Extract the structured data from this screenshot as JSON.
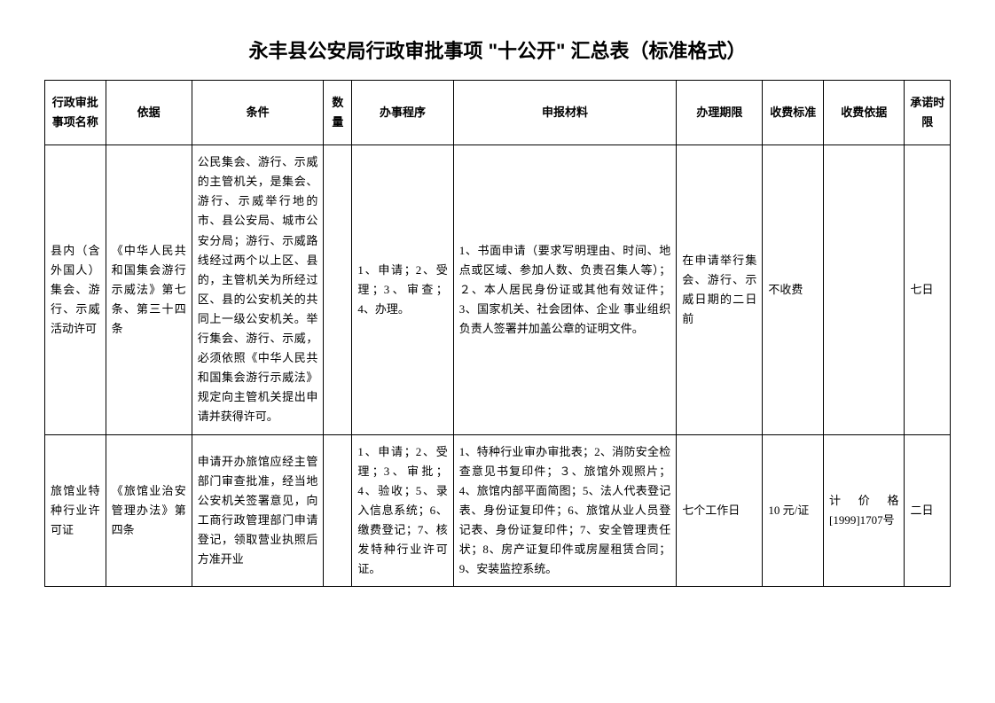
{
  "title": "永丰县公安局行政审批事项 \"十公开\" 汇总表（标准格式）",
  "headers": {
    "name": "行政审批事项名称",
    "basis": "依据",
    "condition": "条件",
    "qty": "数量",
    "procedure": "办事程序",
    "materials": "申报材料",
    "deadline": "办理期限",
    "fee": "收费标准",
    "feebasis": "收费依据",
    "promise": "承诺时限"
  },
  "rows": [
    {
      "name": "县内（含外国人）集会、游行、示威活动许可",
      "basis": "《中华人民共和国集会游行示威法》第七条、第三十四条",
      "condition": "公民集会、游行、示威的主管机关，是集会、游行、示威举行地的市、县公安局、城市公安分局；游行、示威路线经过两个以上区、县的，主管机关为所经过区、县的公安机关的共同上一级公安机关。举行集会、游行、示威，必须依照《中华人民共和国集会游行示威法》规定向主管机关提出申请并获得许可。",
      "qty": "",
      "procedure": "1、申请；2、受理；3、审查；4、办理。",
      "materials": "1、书面申请（要求写明理由、时间、地点或区域、参加人数、负责召集人等）；２、本人居民身份证或其他有效证件；3、国家机关、社会团体、企业 事业组织负责人签署并加盖公章的证明文件。",
      "deadline": "在申请举行集会、游行、示威日期的二日前",
      "fee": "不收费",
      "feebasis": "",
      "promise": "七日"
    },
    {
      "name": "旅馆业特种行业许可证",
      "basis": "《旅馆业治安管理办法》第四条",
      "condition": "申请开办旅馆应经主管部门审查批准，经当地公安机关签署意见，向工商行政管理部门申请登记，领取营业执照后方准开业",
      "qty": "",
      "procedure": "1、申请；2、受理；3、审批；4、验收；5、录入信息系统；6、缴费登记；7、核发特种行业许可证。",
      "materials": "1、特种行业审办审批表；2、消防安全检查意见书复印件；３、旅馆外观照片；4、旅馆内部平面简图；5、法人代表登记表、身份证复印件；6、旅馆从业人员登记表、身份证复印件；7、安全管理责任状；8、房产证复印件或房屋租赁合同；9、安装监控系统。",
      "deadline": "七个工作日",
      "fee": "10 元/证",
      "feebasis": "计价格 [1999]1707号",
      "promise": "二日"
    }
  ]
}
